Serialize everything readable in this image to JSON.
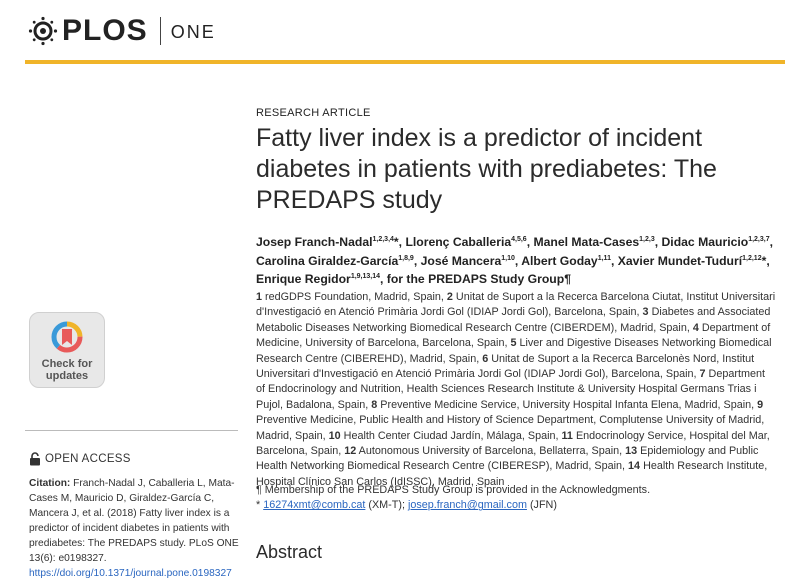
{
  "header": {
    "brand": "PLOS",
    "journal": "ONE",
    "accent_color": "#f0b429"
  },
  "article": {
    "type": "RESEARCH ARTICLE",
    "title": "Fatty liver index is a predictor of incident diabetes in patients with prediabetes: The PREDAPS study"
  },
  "authors": [
    {
      "name": "Josep Franch-Nadal",
      "sup": "1,2,3,4",
      "suffix": "*, "
    },
    {
      "name": "Llorenç Caballeria",
      "sup": "4,5,6",
      "suffix": ", "
    },
    {
      "name": "Manel Mata-Cases",
      "sup": "1,2,3",
      "suffix": ", "
    },
    {
      "name": "Didac Mauricio",
      "sup": "1,2,3,7",
      "suffix": ", "
    },
    {
      "name": "Carolina Giraldez-García",
      "sup": "1,8,9",
      "suffix": ", "
    },
    {
      "name": "José Mancera",
      "sup": "1,10",
      "suffix": ", "
    },
    {
      "name": "Albert Goday",
      "sup": "1,11",
      "suffix": ", "
    },
    {
      "name": "Xavier Mundet-Tudurí",
      "sup": "1,2,12",
      "suffix": "*, "
    },
    {
      "name": "Enrique Regidor",
      "sup": "1,9,13,14",
      "suffix": ", "
    },
    {
      "name": "for the PREDAPS Study Group",
      "sup": "",
      "suffix": "¶"
    }
  ],
  "affiliations": [
    {
      "num": "1",
      "text": "redGDPS Foundation, Madrid, Spain, "
    },
    {
      "num": "2",
      "text": "Unitat de Suport a la Recerca Barcelona Ciutat, Institut Universitari d'Investigació en Atenció Primària Jordi Gol (IDIAP Jordi Gol), Barcelona, Spain, "
    },
    {
      "num": "3",
      "text": "Diabetes and Associated Metabolic Diseases Networking Biomedical Research Centre (CIBERDEM), Madrid, Spain, "
    },
    {
      "num": "4",
      "text": "Department of Medicine, University of Barcelona, Barcelona, Spain, "
    },
    {
      "num": "5",
      "text": "Liver and Digestive Diseases Networking Biomedical Research Centre (CIBEREHD), Madrid, Spain, "
    },
    {
      "num": "6",
      "text": "Unitat de Suport a la Recerca Barcelonès Nord, Institut Universitari d'Investigació en Atenció Primària Jordi Gol (IDIAP Jordi Gol), Barcelona, Spain, "
    },
    {
      "num": "7",
      "text": "Department of Endocrinology and Nutrition, Health Sciences Research Institute & University Hospital Germans Trias i Pujol, Badalona, Spain, "
    },
    {
      "num": "8",
      "text": "Preventive Medicine Service, University Hospital Infanta Elena, Madrid, Spain, "
    },
    {
      "num": "9",
      "text": "Preventive Medicine, Public Health and History of Science Department, Complutense University of Madrid, Madrid, Spain, "
    },
    {
      "num": "10",
      "text": "Health Center Ciudad Jardín, Málaga, Spain, "
    },
    {
      "num": "11",
      "text": "Endocrinology Service, Hospital del Mar, Barcelona, Spain, "
    },
    {
      "num": "12",
      "text": "Autonomous University of Barcelona, Bellaterra, Spain, "
    },
    {
      "num": "13",
      "text": "Epidemiology and Public Health Networking Biomedical Research Centre (CIBERESP), Madrid, Spain, "
    },
    {
      "num": "14",
      "text": "Health Research Institute, Hospital Clínico San Carlos (IdISSC), Madrid, Spain"
    }
  ],
  "membership_note": "¶ Membership of the PREDAPS Study Group is provided in the Acknowledgments.",
  "corresponding": {
    "marker": "* ",
    "email1": "16274xmt@comb.cat",
    "email1_note": " (XM-T); ",
    "email2": "josep.franch@gmail.com",
    "email2_note": " (JFN)"
  },
  "abstract_heading": "Abstract",
  "sidebar": {
    "check_updates": {
      "line1": "Check for",
      "line2": "updates"
    },
    "open_access": "OPEN ACCESS",
    "citation_label": "Citation:",
    "citation_text": " Franch-Nadal J, Caballeria L, Mata-Cases M, Mauricio D, Giraldez-García C, Mancera J, et al. (2018) Fatty liver index is a predictor of incident diabetes in patients with prediabetes: The PREDAPS study. PLoS ONE 13(6): e0198327.",
    "doi": "https://doi.org/10.1371/journal.pone.0198327"
  }
}
